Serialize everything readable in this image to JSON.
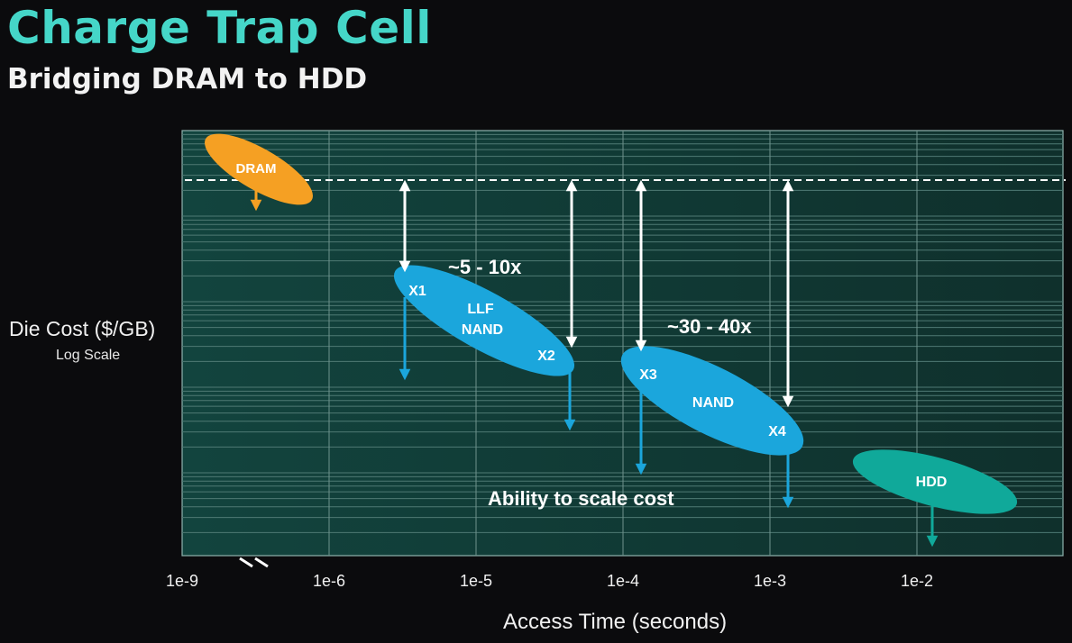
{
  "header": {
    "title": "Charge Trap Cell",
    "subtitle": "Bridging DRAM to HDD"
  },
  "chart_data": {
    "type": "scatter",
    "title": "Charge Trap Cell",
    "subtitle": "Bridging DRAM to HDD",
    "xlabel": "Access Time (seconds)",
    "ylabel": "Die Cost ($/GB)",
    "ylabel_note": "Log Scale",
    "x_scale": "log",
    "y_scale": "log",
    "x_ticks": [
      "1e-9",
      "1e-6",
      "1e-5",
      "1e-4",
      "1e-3",
      "1e-2"
    ],
    "axis_break": "x between 1e-9 and 1e-6",
    "grid": true,
    "reference_line": "DRAM cost level (dashed)",
    "colors": {
      "background": "#0b0b0d",
      "plot_area": "#123d38",
      "dram": "#f5a023",
      "nand": "#1ba6dc",
      "hdd": "#10a99a",
      "title": "#45d6c8"
    },
    "series": [
      {
        "name": "DRAM",
        "labels": [
          "DRAM"
        ],
        "color": "#f5a023"
      },
      {
        "name": "LLF NAND",
        "labels": [
          "LLF",
          "NAND"
        ],
        "points": [
          "X1",
          "X2"
        ],
        "color": "#1ba6dc"
      },
      {
        "name": "NAND",
        "labels": [
          "NAND"
        ],
        "points": [
          "X3",
          "X4"
        ],
        "color": "#1ba6dc"
      },
      {
        "name": "HDD",
        "labels": [
          "HDD"
        ],
        "color": "#10a99a"
      }
    ],
    "annotations": [
      {
        "text": "~5 - 10x"
      },
      {
        "text": "~30 - 40x"
      },
      {
        "text": "Ability to scale cost"
      }
    ]
  }
}
